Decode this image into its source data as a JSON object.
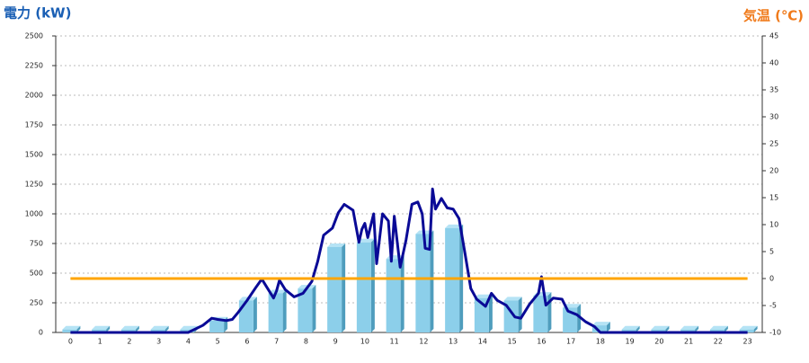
{
  "chart_data": {
    "type": "bar-line",
    "y_title": "電力 (kW)",
    "y2_title": "気温 (℃)",
    "categories": [
      "0",
      "1",
      "2",
      "3",
      "4",
      "5",
      "6",
      "7",
      "8",
      "9",
      "10",
      "11",
      "12",
      "13",
      "14",
      "15",
      "16",
      "17",
      "18",
      "19",
      "20",
      "21",
      "22",
      "23"
    ],
    "values": [
      25,
      25,
      25,
      25,
      25,
      100,
      270,
      330,
      370,
      720,
      760,
      620,
      830,
      880,
      290,
      270,
      310,
      210,
      60,
      25,
      25,
      25,
      25,
      25
    ],
    "bar_color": "#8ccfea",
    "power_line": {
      "color": "#0a0a96",
      "x": [
        0,
        4,
        4.5,
        4.8,
        5,
        5.3,
        5.5,
        5.7,
        6,
        6.3,
        6.5,
        6.7,
        6.9,
        7,
        7.1,
        7.3,
        7.6,
        7.9,
        8.2,
        8.4,
        8.6,
        8.9,
        9.1,
        9.3,
        9.6,
        9.8,
        9.9,
        10,
        10.1,
        10.3,
        10.4,
        10.6,
        10.8,
        10.9,
        11,
        11.2,
        11.4,
        11.6,
        11.8,
        11.95,
        12.05,
        12.2,
        12.3,
        12.4,
        12.6,
        12.8,
        13,
        13.2,
        13.4,
        13.6,
        13.8,
        14.1,
        14.3,
        14.5,
        14.8,
        15.1,
        15.3,
        15.6,
        15.9,
        16,
        16.15,
        16.4,
        16.7,
        16.9,
        17.2,
        17.5,
        17.8,
        18,
        23
      ],
      "values": [
        0,
        0,
        60,
        120,
        110,
        100,
        110,
        170,
        270,
        380,
        450,
        370,
        290,
        350,
        440,
        360,
        300,
        330,
        430,
        600,
        820,
        880,
        1010,
        1080,
        1030,
        760,
        870,
        920,
        800,
        1000,
        580,
        1000,
        940,
        600,
        980,
        550,
        780,
        1080,
        1100,
        1000,
        710,
        700,
        1210,
        1040,
        1130,
        1050,
        1040,
        960,
        670,
        370,
        280,
        220,
        330,
        270,
        230,
        130,
        120,
        240,
        330,
        470,
        230,
        290,
        280,
        180,
        150,
        90,
        50,
        0,
        0
      ]
    },
    "temp_line": {
      "color": "#ffa500",
      "axis": "y2",
      "values": [
        0,
        0,
        0,
        0,
        0,
        0,
        0,
        0,
        0,
        0,
        0,
        0,
        0,
        0,
        0,
        0,
        0,
        0,
        0,
        0,
        0,
        0,
        0,
        0
      ]
    },
    "ylim": [
      0,
      2500
    ],
    "yticks": [
      0,
      250,
      500,
      750,
      1000,
      1250,
      1500,
      1750,
      2000,
      2250,
      2500
    ],
    "y2lim": [
      -10,
      45
    ],
    "y2ticks": [
      -10,
      -5,
      0,
      5,
      10,
      15,
      20,
      25,
      30,
      35,
      40,
      45
    ],
    "grid": true
  }
}
